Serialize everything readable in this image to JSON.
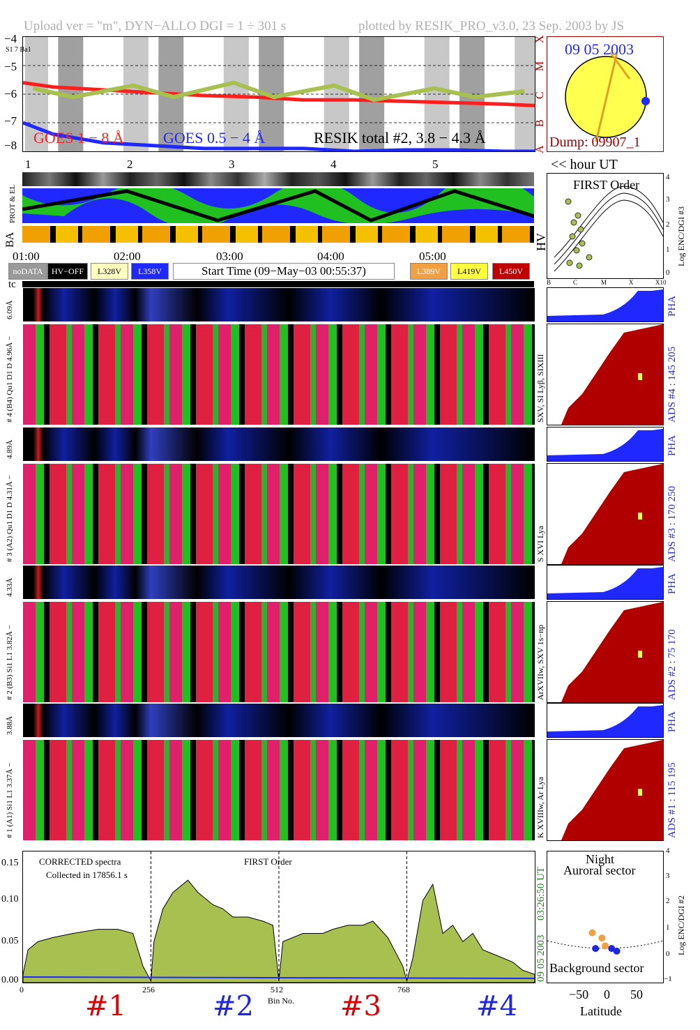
{
  "header": {
    "left": "Upload ver = \"m\", DYN−ALLO DGI =   1 ÷ 301 s",
    "right": "plotted by RESIK_PRO_v3.0, 23 Sep. 2003 by JS"
  },
  "top_plot": {
    "y_ticks": [
      "−4",
      "−5",
      "−6",
      "−7",
      "−8"
    ],
    "corner_label": "S1 7 Ba1",
    "class_letters": [
      "X",
      "M",
      "C",
      "B",
      "A"
    ],
    "legend": {
      "goes_long": "GOES 1 − 8 Å",
      "goes_short": "GOES 0.5 − 4 Å",
      "resik": "RESIK total #2, 3.8 − 4.3 Å"
    },
    "hour_ticks": [
      "1",
      "2",
      "3",
      "4",
      "5"
    ],
    "hour_label": "<< hour UT",
    "colors": {
      "goes_long": "#ff1e1e",
      "goes_short": "#1e28ff",
      "resik": "#a8c050"
    }
  },
  "sun": {
    "date": "09 05 2003",
    "dump": "Dump: 09907_1"
  },
  "rows": {
    "prot_label": "PROT & EL",
    "ba_label": "BA",
    "hv_label": "HV"
  },
  "time_axis": {
    "labels": [
      "01:00",
      "02:00",
      "03:00",
      "04:00",
      "05:00"
    ]
  },
  "legend": {
    "nodata": "noDATA",
    "hvoff": "HV−OFF",
    "v1": "L328V",
    "v2": "L358V",
    "start": "Start Time (09−May−03 00:55:37)",
    "v3": "L389V",
    "v4": "L419V",
    "v5": "L450V",
    "tc": "tc"
  },
  "scatter_top": {
    "title": "FIRST Order",
    "xticks": [
      "B",
      "C",
      "M",
      "X",
      "X10"
    ],
    "yticks": [
      "4",
      "3",
      "2",
      "1",
      "0"
    ],
    "ylabel": "Log ENC/DGI #3"
  },
  "channels": [
    {
      "pha_range": "6.09Å",
      "spec_label": "# 4 (B4) Qu1 D1 D 4.96Å − ",
      "ads": "ADS #4 :   145 205",
      "lines": "SXV, SI Lyβ, SIXIII",
      "pha": "PHA"
    },
    {
      "pha_range": "4.89Å",
      "spec_label": "# 3 (A2) Qu1 D1 D  4.31Å − ",
      "ads": "ADS #3 :   170 250",
      "lines": "S XVI Lya",
      "pha": "PHA"
    },
    {
      "pha_range": "4.33Å",
      "spec_label": "# 2 (B3) Si1 L1  3.82Å − ",
      "ads": "ADS #2 :   75 170",
      "lines": "ArXVIIw, SXV 1s−np",
      "pha": "PHA"
    },
    {
      "pha_range": "3.88Å",
      "spec_label": "# 1 (A1) Si1 L1  3.37Å − ",
      "ads": "ADS #1 :   115 195",
      "lines": "K XVIIIw, Ar Lya",
      "pha": "PHA"
    }
  ],
  "spectrum": {
    "title1": "CORRECTED spectra",
    "title2": "Collected in 17856.1 s",
    "order": "FIRST Order",
    "y_ticks": [
      "0.15",
      "0.10",
      "0.05",
      "0.00"
    ],
    "x_ticks": [
      "0",
      "256",
      "512",
      "768"
    ],
    "xlabel": "Bin No.",
    "time": "03:26:50 UT",
    "date": "09 05 2003",
    "detectors": [
      "#1",
      "#2",
      "#3",
      "#4"
    ],
    "detector_colors": [
      "#e00000",
      "#1e28e0",
      "#e00000",
      "#1e28e0"
    ],
    "fill": "#a8c050",
    "line": "#1e28ff"
  },
  "scatter_bottom": {
    "title1": "Night",
    "title2": "Auroral sector",
    "bottom": "Background sector",
    "xticks": [
      "−50",
      "0",
      "50"
    ],
    "xlabel": "Latitude",
    "yticks": [
      "4",
      "3",
      "2",
      "1",
      "0",
      "−1"
    ],
    "ylabel": "Log ENC/DGI #2"
  },
  "chart_data": [
    {
      "type": "line",
      "title": "",
      "xlabel": "hour UT",
      "ylabel": "",
      "x_range": [
        0.7,
        5.8
      ],
      "ylim": [
        -8,
        -4
      ],
      "series": [
        {
          "name": "GOES 1 − 8 Å",
          "x": [
            0.7,
            1.0,
            1.5,
            2.0,
            2.5,
            3.0,
            3.5,
            4.0,
            4.5,
            5.0,
            5.5,
            5.8
          ],
          "y": [
            -5.6,
            -5.75,
            -5.85,
            -5.95,
            -6.05,
            -6.1,
            -6.2,
            -6.2,
            -6.25,
            -6.3,
            -6.35,
            -6.4
          ]
        },
        {
          "name": "GOES 0.5 − 4 Å",
          "x": [
            0.7,
            1.0,
            1.5,
            2.0,
            2.5,
            3.0,
            3.5,
            4.0,
            4.5,
            5.0,
            5.5,
            5.8
          ],
          "y": [
            -7.0,
            -7.4,
            -7.7,
            -7.8,
            -7.9,
            -7.9,
            -7.9,
            -8.0,
            -7.95,
            -7.95,
            -8.0,
            -8.0
          ]
        },
        {
          "name": "RESIK total #2, 3.8 − 4.3 Å",
          "x": [
            0.8,
            1.2,
            1.8,
            2.2,
            2.8,
            3.2,
            3.8,
            4.2,
            4.8,
            5.2,
            5.7
          ],
          "y": [
            -5.8,
            -6.1,
            -5.7,
            -6.1,
            -5.6,
            -6.1,
            -5.7,
            -6.2,
            -5.8,
            -6.1,
            -5.9
          ]
        }
      ]
    },
    {
      "type": "area",
      "title": "CORRECTED spectra",
      "xlabel": "Bin No.",
      "ylabel": "",
      "ylim": [
        0,
        0.16
      ],
      "x_range": [
        0,
        1024
      ],
      "series": [
        {
          "name": "spectrum",
          "x": [
            0,
            10,
            30,
            60,
            100,
            150,
            190,
            220,
            240,
            256,
            262,
            280,
            300,
            330,
            350,
            380,
            400,
            420,
            450,
            480,
            500,
            512,
            520,
            540,
            560,
            600,
            620,
            650,
            680,
            700,
            730,
            760,
            768,
            780,
            800,
            820,
            840,
            860,
            880,
            900,
            920,
            940,
            960,
            980,
            1000,
            1024
          ],
          "y": [
            0.01,
            0.04,
            0.05,
            0.055,
            0.06,
            0.065,
            0.065,
            0.06,
            0.02,
            0.002,
            0.05,
            0.09,
            0.11,
            0.125,
            0.11,
            0.095,
            0.09,
            0.08,
            0.08,
            0.075,
            0.07,
            0.002,
            0.05,
            0.055,
            0.06,
            0.06,
            0.065,
            0.07,
            0.07,
            0.075,
            0.055,
            0.02,
            0.002,
            0.03,
            0.1,
            0.12,
            0.06,
            0.07,
            0.05,
            0.06,
            0.04,
            0.035,
            0.03,
            0.025,
            0.015,
            0.01
          ]
        }
      ]
    },
    {
      "type": "scatter",
      "title": "FIRST Order",
      "xlabel": "",
      "ylabel": "Log ENC/DGI #3",
      "ylim": [
        0,
        4
      ],
      "points": [
        {
          "x": "B",
          "y": 0.3
        },
        {
          "x": "C",
          "y": 1.5
        },
        {
          "x": "C",
          "y": 2.2
        },
        {
          "x": "C",
          "y": 1.0
        }
      ]
    },
    {
      "type": "scatter",
      "title": "Night Auroral sector",
      "xlabel": "Latitude",
      "ylabel": "Log ENC/DGI #2",
      "ylim": [
        -1,
        4
      ],
      "x_range": [
        -90,
        90
      ],
      "points": [
        {
          "x": -20,
          "y": 0.9,
          "c": "orange"
        },
        {
          "x": -5,
          "y": 0.7,
          "c": "orange"
        },
        {
          "x": 0,
          "y": 0.4,
          "c": "orange"
        },
        {
          "x": -15,
          "y": 0.3,
          "c": "blue"
        },
        {
          "x": 10,
          "y": 0.3,
          "c": "blue"
        },
        {
          "x": 18,
          "y": 0.2,
          "c": "blue"
        }
      ]
    }
  ]
}
